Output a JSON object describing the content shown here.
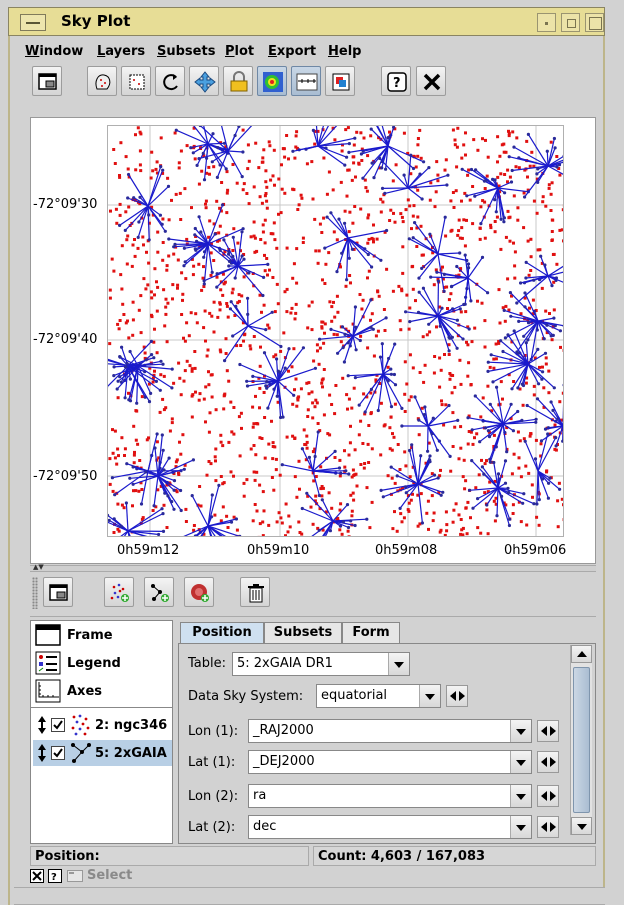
{
  "window": {
    "title": "Sky Plot"
  },
  "menu": {
    "items": [
      {
        "first": "W",
        "rest": "indow"
      },
      {
        "first": "L",
        "rest": "ayers"
      },
      {
        "first": "S",
        "rest": "ubsets"
      },
      {
        "first": "P",
        "rest": "lot"
      },
      {
        "first": "E",
        "rest": "xport"
      },
      {
        "first": "H",
        "rest": "elp"
      }
    ]
  },
  "toolbar": {
    "icons": [
      "window-icon",
      "draw-subset-icon",
      "blob-subset-icon",
      "replot-icon",
      "navigate-icon",
      "lock-axes-icon",
      "heatmap-icon",
      "axis-control-icon",
      "export-image-icon",
      "help-icon",
      "close-icon"
    ]
  },
  "plot": {
    "y_ticks": [
      "-72°09'30",
      "-72°09'40",
      "-72°09'50"
    ],
    "x_ticks": [
      "0h59m12",
      "0h59m10",
      "0h59m08",
      "0h59m06"
    ],
    "colors": {
      "points": "#e01010",
      "pairs": "#1a1acc",
      "grid": "#c8c8c8"
    }
  },
  "lower_toolbar": {
    "icons": [
      "window-icon",
      "add-position-layer-icon",
      "add-pair-layer-icon",
      "add-density-layer-icon",
      "delete-icon"
    ]
  },
  "layers": {
    "fixed": [
      {
        "label": "Frame",
        "icon": "frame-icon"
      },
      {
        "label": "Legend",
        "icon": "legend-icon"
      },
      {
        "label": "Axes",
        "icon": "axes-icon"
      }
    ],
    "controls": [
      {
        "label": "2: ngc346",
        "icon": "scatter-layer-icon",
        "checked": true,
        "selected": false
      },
      {
        "label": "5: 2xGAIA",
        "icon": "pair-layer-icon",
        "checked": true,
        "selected": true
      }
    ]
  },
  "tabs": [
    {
      "label": "Position",
      "active": true
    },
    {
      "label": "Subsets",
      "active": false
    },
    {
      "label": "Form",
      "active": false
    }
  ],
  "form": {
    "table_label": "Table:",
    "table_value": "5: 2xGAIA DR1",
    "sky_system_label": "Data Sky System:",
    "sky_system_value": "equatorial",
    "lon1_label": "Lon (1):",
    "lon1_value": "_RAJ2000",
    "lat1_label": "Lat (1):",
    "lat1_value": "_DEJ2000",
    "lon2_label": "Lon (2):",
    "lon2_value": "ra",
    "lat2_label": "Lat (2):",
    "lat2_value": "dec"
  },
  "status": {
    "left": "Position:",
    "count": "Count: 4,603 / 167,083"
  },
  "bottom": {
    "select_label": "Select"
  }
}
